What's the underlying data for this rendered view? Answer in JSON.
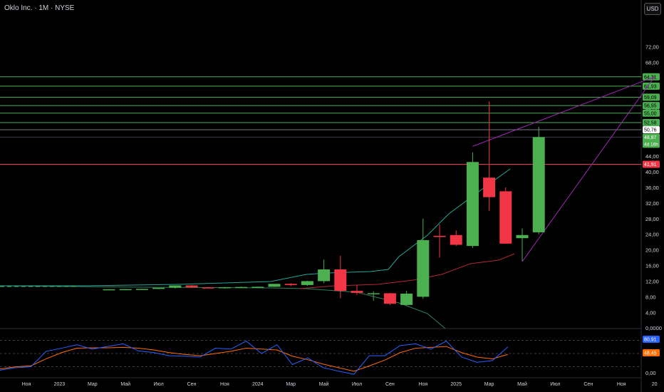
{
  "header": {
    "title": "Oklo Inc. · 1М · NYSE",
    "currency_button": "USD"
  },
  "colors": {
    "background": "#000000",
    "up": "#4caf50",
    "down": "#f23645",
    "hline_green": "#4caf50",
    "hline_red": "#f23645",
    "channel": "#9c27b0",
    "ma_teal": "#26a69a",
    "ma_red": "#b22833",
    "ma_green": "#2e7d5b",
    "osc_blue": "#2962ff",
    "osc_orange": "#ff6d00",
    "text": "#d1d4dc"
  },
  "chart_data": {
    "type": "candlestick",
    "title": "Oklo Inc. · 1М · NYSE",
    "price_axis": {
      "ticks": [
        "72,00",
        "68,00",
        "64,00",
        "60,00",
        "56,00",
        "52,00",
        "48,00",
        "44,00",
        "40,00",
        "36,00",
        "32,00",
        "28,00",
        "24,00",
        "20,00",
        "16,00",
        "12,00",
        "8,00",
        "4,00",
        "0,0000"
      ],
      "ylim": [
        0,
        76
      ]
    },
    "time_axis": {
      "labels": [
        "Ноя",
        "2023",
        "Мар",
        "Май",
        "Июл",
        "Сен",
        "Ноя",
        "2024",
        "Мар",
        "Май",
        "Июл",
        "Сен",
        "Ноя",
        "2025",
        "Мар",
        "Май",
        "Июл",
        "Сен",
        "Ноя",
        "20"
      ]
    },
    "candles": [
      {
        "month": "2023-04",
        "o": 9.9,
        "h": 9.95,
        "l": 9.85,
        "c": 9.92
      },
      {
        "month": "2023-05",
        "o": 9.92,
        "h": 10.0,
        "l": 9.9,
        "c": 9.95
      },
      {
        "month": "2023-06",
        "o": 9.95,
        "h": 10.05,
        "l": 9.9,
        "c": 10.0
      },
      {
        "month": "2023-07",
        "o": 10.0,
        "h": 10.1,
        "l": 9.95,
        "c": 10.3
      },
      {
        "month": "2023-08",
        "o": 10.3,
        "h": 10.4,
        "l": 10.1,
        "c": 10.9
      },
      {
        "month": "2023-09",
        "o": 10.9,
        "h": 11.0,
        "l": 10.3,
        "c": 10.4
      },
      {
        "month": "2023-10",
        "o": 10.4,
        "h": 10.5,
        "l": 10.2,
        "c": 10.3
      },
      {
        "month": "2023-11",
        "o": 10.3,
        "h": 10.5,
        "l": 10.1,
        "c": 10.45
      },
      {
        "month": "2023-12",
        "o": 10.45,
        "h": 10.6,
        "l": 10.3,
        "c": 10.5
      },
      {
        "month": "2024-01",
        "o": 10.5,
        "h": 10.6,
        "l": 10.4,
        "c": 10.55
      },
      {
        "month": "2024-02",
        "o": 10.55,
        "h": 11.3,
        "l": 10.5,
        "c": 11.3
      },
      {
        "month": "2024-03",
        "o": 11.3,
        "h": 11.5,
        "l": 10.7,
        "c": 11.0
      },
      {
        "month": "2024-04",
        "o": 11.0,
        "h": 12.1,
        "l": 10.8,
        "c": 12.0
      },
      {
        "month": "2024-05",
        "o": 12.0,
        "h": 17.5,
        "l": 11.5,
        "c": 15.0
      },
      {
        "month": "2024-06",
        "o": 15.0,
        "h": 18.5,
        "l": 7.6,
        "c": 9.5
      },
      {
        "month": "2024-07",
        "o": 9.5,
        "h": 11.0,
        "l": 8.5,
        "c": 9.0
      },
      {
        "month": "2024-08",
        "o": 8.7,
        "h": 9.4,
        "l": 7.0,
        "c": 8.9
      },
      {
        "month": "2024-09",
        "o": 8.9,
        "h": 9.0,
        "l": 5.9,
        "c": 6.2
      },
      {
        "month": "2024-10",
        "o": 5.9,
        "h": 9.5,
        "l": 5.8,
        "c": 8.8
      },
      {
        "month": "2024-11",
        "o": 8.0,
        "h": 28.0,
        "l": 7.5,
        "c": 22.5
      },
      {
        "month": "2024-12",
        "o": 23.6,
        "h": 26.5,
        "l": 18.0,
        "c": 23.3
      },
      {
        "month": "2025-01",
        "o": 23.8,
        "h": 25.0,
        "l": 21.0,
        "c": 21.3
      },
      {
        "month": "2025-02",
        "o": 21.0,
        "h": 45.0,
        "l": 20.5,
        "c": 42.5
      },
      {
        "month": "2025-03",
        "o": 38.5,
        "h": 58.0,
        "l": 30.0,
        "c": 33.5
      },
      {
        "month": "2025-04",
        "o": 35.0,
        "h": 36.0,
        "l": 21.6,
        "c": 21.6
      },
      {
        "month": "2025-05",
        "o": 23.0,
        "h": 25.5,
        "l": 17.2,
        "c": 23.8
      },
      {
        "month": "2025-06",
        "o": 24.5,
        "h": 51.5,
        "l": 24.0,
        "c": 48.87
      }
    ],
    "horizontal_levels": [
      {
        "label": "64,31",
        "value": 64.31,
        "kind": "green"
      },
      {
        "label": "61,93",
        "value": 61.93,
        "kind": "green"
      },
      {
        "label": "59,09",
        "value": 59.09,
        "kind": "green"
      },
      {
        "label": "56,95",
        "value": 56.95,
        "kind": "green"
      },
      {
        "label": "55,00",
        "value": 55.0,
        "kind": "green"
      },
      {
        "label": "52,58",
        "value": 52.58,
        "kind": "green"
      },
      {
        "label": "50,76",
        "value": 50.76,
        "kind": "white"
      },
      {
        "label": "48,87",
        "value": 48.87,
        "kind": "current",
        "sub": "4d 16h"
      },
      {
        "label": "41,91",
        "value": 41.91,
        "kind": "red"
      }
    ],
    "hidden_tick_behind_levels": "60,00",
    "oscillator": {
      "ticks": [
        "0,00"
      ],
      "levels_shown": [
        "80,91",
        "48,45"
      ],
      "blue": [
        12,
        18,
        20,
        55,
        62,
        70,
        60,
        66,
        72,
        56,
        52,
        45,
        44,
        42,
        62,
        60,
        78,
        50,
        70,
        25,
        40,
        18,
        10,
        3,
        45,
        45,
        68,
        72,
        60,
        78,
        42,
        30,
        34,
        65
      ],
      "orange": [
        15,
        20,
        22,
        38,
        52,
        62,
        63,
        63,
        64,
        62,
        58,
        52,
        48,
        45,
        50,
        55,
        62,
        60,
        58,
        44,
        36,
        26,
        18,
        10,
        22,
        35,
        52,
        62,
        64,
        66,
        52,
        42,
        38,
        48
      ]
    },
    "channel_lines": [
      {
        "from": [
          "2025-02",
          46.5
        ],
        "to": [
          "2026-01",
          64.3
        ]
      },
      {
        "from": [
          "2025-05",
          17.0
        ],
        "to": [
          "2026-01",
          64.3
        ]
      }
    ]
  }
}
